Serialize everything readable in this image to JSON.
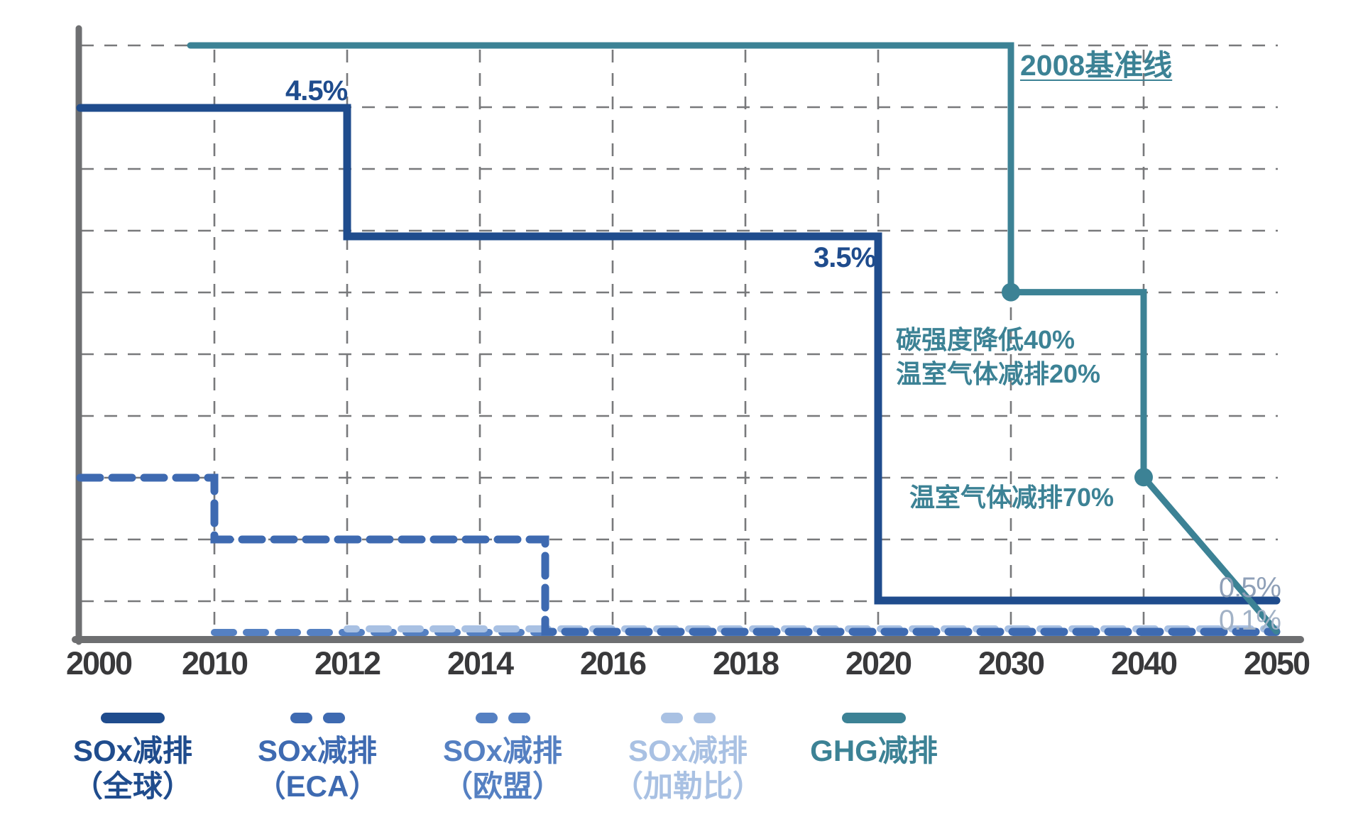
{
  "chart_data": {
    "type": "line",
    "title": "",
    "x_categories": [
      "2000",
      "2010",
      "2012",
      "2014",
      "2016",
      "2018",
      "2020",
      "2030",
      "2040",
      "2050"
    ],
    "grid": {
      "style": "dashed",
      "horizontal_lines": 10,
      "vertical_lines_at": [
        "2010",
        "2012",
        "2014",
        "2016",
        "2018",
        "2020",
        "2030",
        "2040"
      ]
    },
    "y_axis": {
      "tick_labels_visible": false
    },
    "axis_color": "#6e6f71",
    "grid_color": "#78797b",
    "tick_label_color": "#39393b",
    "series": [
      {
        "id": "sox-global",
        "legend_line1": "SOx减排",
        "legend_line2": "（全球）",
        "color": "#1f4c8d",
        "line_style": "solid",
        "value_scale": "sox_sulphur_percent",
        "points": [
          [
            2000,
            4.5
          ],
          [
            2012,
            4.5
          ],
          [
            2012,
            3.5
          ],
          [
            2020,
            3.5
          ],
          [
            2020,
            0.5
          ],
          [
            2050,
            0.5
          ]
        ]
      },
      {
        "id": "sox-eca",
        "legend_line1": "SOx减排",
        "legend_line2": "（ECA）",
        "color": "#3e6ab1",
        "line_style": "dashed",
        "value_scale": "sox_sulphur_percent",
        "points": [
          [
            2000,
            1.5
          ],
          [
            2010,
            1.5
          ],
          [
            2010,
            1.0
          ],
          [
            2015,
            1.0
          ],
          [
            2015,
            0.1
          ],
          [
            2050,
            0.1
          ]
        ]
      },
      {
        "id": "sox-eu",
        "legend_line1": "SOx减排",
        "legend_line2": "（欧盟）",
        "color": "#5580c2",
        "line_style": "dashed",
        "value_scale": "sox_sulphur_percent",
        "points": [
          [
            2010,
            0.1
          ],
          [
            2050,
            0.1
          ]
        ]
      },
      {
        "id": "sox-caribbean",
        "legend_line1": "SOx减排",
        "legend_line2": "（加勒比）",
        "color": "#a9c1e3",
        "line_style": "dashed",
        "value_scale": "sox_sulphur_percent",
        "points": [
          [
            2012,
            0.1
          ],
          [
            2050,
            0.1
          ]
        ]
      },
      {
        "id": "ghg",
        "legend_line1": "GHG减排",
        "legend_line2": "",
        "color": "#3c8295",
        "line_style": "solid",
        "value_scale": "ghg_reduction_percent_vs_2008",
        "points": [
          [
            2008,
            0
          ],
          [
            2030,
            0
          ],
          [
            2030,
            40
          ],
          [
            2040,
            40
          ],
          [
            2040,
            70
          ],
          [
            2050,
            95
          ]
        ],
        "markers": [
          [
            2030,
            40
          ],
          [
            2040,
            70
          ]
        ]
      }
    ],
    "annotations": {
      "global_4_5": "4.5%",
      "global_3_5": "3.5%",
      "global_0_5": "0.5%",
      "eca_0_1": "0.1%",
      "ghg_baseline": "2008基准线",
      "ghg_2030_line1": "碳强度降低40%",
      "ghg_2030_line2": "温室气体减排20%",
      "ghg_2040": "温室气体减排70%"
    }
  }
}
